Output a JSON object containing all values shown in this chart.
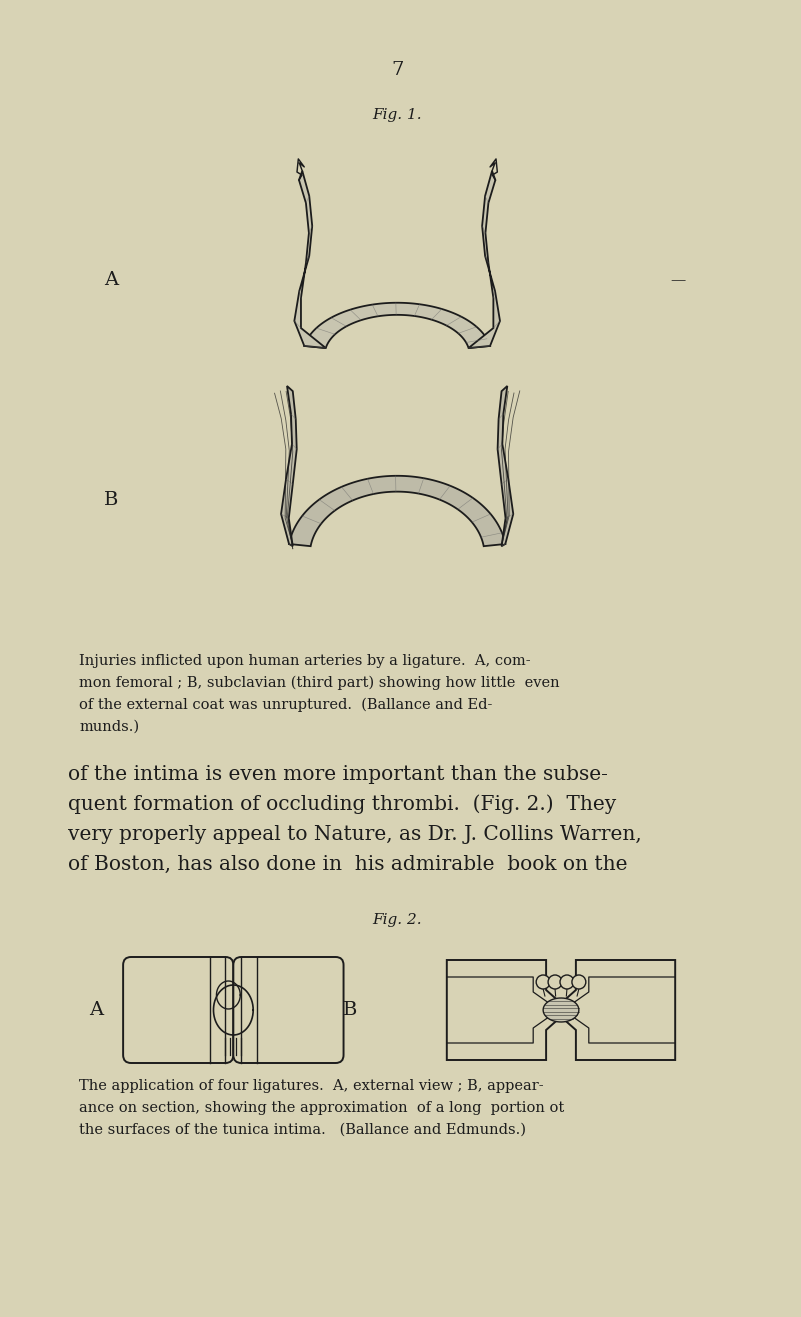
{
  "background_color": "#d8d3b5",
  "page_number": "7",
  "fig1_title": "Fig. 1.",
  "fig2_title": "Fig. 2.",
  "caption_fig1_line1": "Injuries inflicted upon human arteries by a ligature.  A, com-",
  "caption_fig1_line2": "mon femoral ; B, subclavian (third part) showing how little  even",
  "caption_fig1_line3": "of the external coat was unruptured.  (Ballance and Ed-",
  "caption_fig1_line4": "munds.)",
  "body_line1": "of the intima is even more important than the subse-",
  "body_line2": "quent formation of occluding thrombi.  (Fig. 2.)  They",
  "body_line3": "very properly appeal to Nature, as Dr. J. Collins Warren,",
  "body_line4": "of Boston, has also done in  his admirable  book on the",
  "caption_fig2_line1": "The application of four ligatures.  A, external view ; B, appear-",
  "caption_fig2_line2": "ance on section, showing the approximation  of a long  portion ot",
  "caption_fig2_line3": "the surfaces of the tunica intima.   (Ballance and Edmunds.)",
  "ink_color": "#1c1c1c",
  "fill_color": "#c8c5b0",
  "fill_color2": "#bebba8"
}
